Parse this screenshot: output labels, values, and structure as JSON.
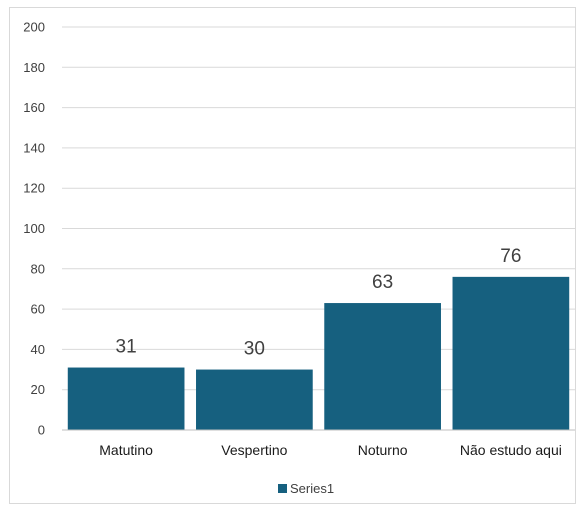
{
  "chart_data": {
    "type": "bar",
    "categories": [
      "Matutino",
      "Vespertino",
      "Noturno",
      "Não estudo aqui"
    ],
    "series": [
      {
        "name": "Series1",
        "values": [
          31,
          30,
          63,
          76
        ],
        "color": "#16607f"
      }
    ],
    "ylim": [
      0,
      200
    ],
    "yticks": [
      0,
      20,
      40,
      60,
      80,
      100,
      120,
      140,
      160,
      180,
      200
    ],
    "grid": true,
    "data_labels": true,
    "legend_position": "bottom",
    "gridline_color": "#d9d9d9",
    "axis_color": "#bfbfbf"
  }
}
